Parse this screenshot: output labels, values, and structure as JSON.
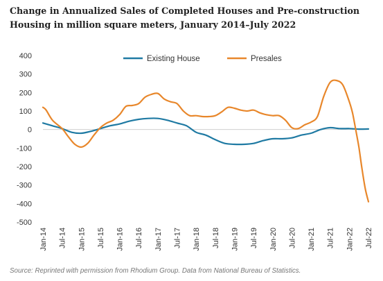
{
  "title": "Change in Annualized Sales of Completed Houses and Pre-construction Housing in million square meters, January 2014–July 2022",
  "source": "Source: Reprinted with permission from Rhodium Group. Data from National Bureau of Statistics.",
  "colors": {
    "existing": "#1f7aa3",
    "presales": "#e8872b",
    "zero_line": "#cfcfcf",
    "axis_text": "#333333"
  },
  "chart_data": {
    "type": "line",
    "title": "Change in Annualized Sales of Completed Houses and Pre-construction Housing in million square meters, January 2014–July 2022",
    "xlabel": "",
    "ylabel": "",
    "ylim": [
      -500,
      400
    ],
    "yticks": [
      400,
      300,
      200,
      100,
      0,
      -100,
      -200,
      -300,
      -400,
      -500
    ],
    "xtick_labels": [
      "Jan-14",
      "Jul-14",
      "Jan-15",
      "Jul-15",
      "Jan-16",
      "Jul-16",
      "Jan-17",
      "Jul-17",
      "Jan-18",
      "Jul-18",
      "Jan-19",
      "Jul-19",
      "Jan-20",
      "Jul-20",
      "Jan-21",
      "Jul-21",
      "Jan-22",
      "Jul-22"
    ],
    "x_start": "2014-01",
    "x_end": "2022-07",
    "grid": false,
    "legend": "top-center",
    "series": [
      {
        "name": "Existing House",
        "color": "#1f7aa3",
        "points": [
          [
            "2014-01",
            35
          ],
          [
            "2014-04",
            20
          ],
          [
            "2014-07",
            5
          ],
          [
            "2014-10",
            -15
          ],
          [
            "2015-01",
            -20
          ],
          [
            "2015-04",
            -10
          ],
          [
            "2015-07",
            5
          ],
          [
            "2015-10",
            20
          ],
          [
            "2016-01",
            30
          ],
          [
            "2016-04",
            45
          ],
          [
            "2016-07",
            55
          ],
          [
            "2016-10",
            60
          ],
          [
            "2017-01",
            60
          ],
          [
            "2017-04",
            50
          ],
          [
            "2017-07",
            35
          ],
          [
            "2017-10",
            20
          ],
          [
            "2018-01",
            -15
          ],
          [
            "2018-04",
            -30
          ],
          [
            "2018-07",
            -55
          ],
          [
            "2018-10",
            -75
          ],
          [
            "2019-01",
            -80
          ],
          [
            "2019-04",
            -80
          ],
          [
            "2019-07",
            -75
          ],
          [
            "2019-10",
            -60
          ],
          [
            "2020-01",
            -50
          ],
          [
            "2020-04",
            -50
          ],
          [
            "2020-07",
            -45
          ],
          [
            "2020-10",
            -30
          ],
          [
            "2021-01",
            -20
          ],
          [
            "2021-04",
            0
          ],
          [
            "2021-07",
            10
          ],
          [
            "2021-10",
            5
          ],
          [
            "2022-01",
            5
          ],
          [
            "2022-04",
            2
          ],
          [
            "2022-07",
            3
          ]
        ]
      },
      {
        "name": "Presales",
        "color": "#e8872b",
        "points": [
          [
            "2014-01",
            120
          ],
          [
            "2014-02",
            105
          ],
          [
            "2014-04",
            50
          ],
          [
            "2014-07",
            5
          ],
          [
            "2014-09",
            -40
          ],
          [
            "2014-11",
            -80
          ],
          [
            "2015-01",
            -95
          ],
          [
            "2015-03",
            -75
          ],
          [
            "2015-05",
            -30
          ],
          [
            "2015-07",
            10
          ],
          [
            "2015-09",
            35
          ],
          [
            "2015-11",
            50
          ],
          [
            "2016-01",
            80
          ],
          [
            "2016-03",
            125
          ],
          [
            "2016-05",
            130
          ],
          [
            "2016-07",
            140
          ],
          [
            "2016-09",
            175
          ],
          [
            "2016-11",
            190
          ],
          [
            "2017-01",
            195
          ],
          [
            "2017-03",
            165
          ],
          [
            "2017-05",
            150
          ],
          [
            "2017-07",
            140
          ],
          [
            "2017-09",
            100
          ],
          [
            "2017-11",
            75
          ],
          [
            "2018-01",
            75
          ],
          [
            "2018-03",
            70
          ],
          [
            "2018-05",
            70
          ],
          [
            "2018-07",
            75
          ],
          [
            "2018-09",
            95
          ],
          [
            "2018-11",
            120
          ],
          [
            "2019-01",
            115
          ],
          [
            "2019-03",
            105
          ],
          [
            "2019-05",
            100
          ],
          [
            "2019-07",
            105
          ],
          [
            "2019-09",
            90
          ],
          [
            "2019-11",
            80
          ],
          [
            "2020-01",
            75
          ],
          [
            "2020-03",
            75
          ],
          [
            "2020-05",
            50
          ],
          [
            "2020-07",
            10
          ],
          [
            "2020-09",
            5
          ],
          [
            "2020-11",
            25
          ],
          [
            "2021-01",
            40
          ],
          [
            "2021-03",
            70
          ],
          [
            "2021-05",
            180
          ],
          [
            "2021-07",
            255
          ],
          [
            "2021-09",
            265
          ],
          [
            "2021-11",
            240
          ],
          [
            "2022-01",
            150
          ],
          [
            "2022-02",
            90
          ],
          [
            "2022-03",
            0
          ],
          [
            "2022-04",
            -95
          ],
          [
            "2022-05",
            -215
          ],
          [
            "2022-06",
            -320
          ],
          [
            "2022-07",
            -390
          ]
        ]
      }
    ]
  }
}
